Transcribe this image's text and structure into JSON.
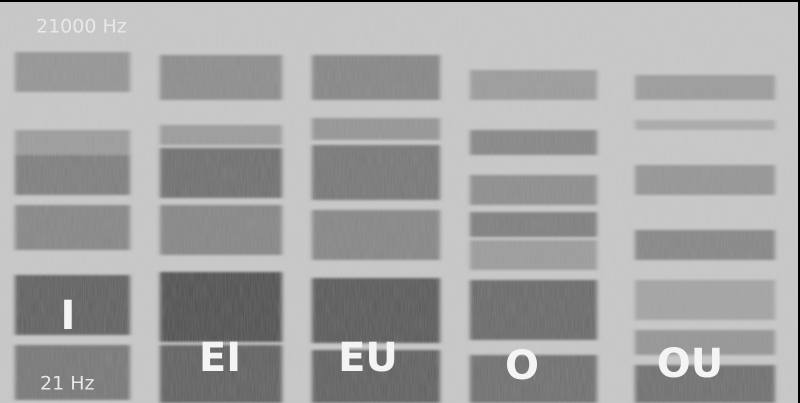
{
  "frequency_labels": {
    "top": "21000 Hz",
    "bottom": "21 Hz"
  },
  "vowels": [
    "I",
    "EI",
    "EU",
    "O",
    "OU"
  ]
}
